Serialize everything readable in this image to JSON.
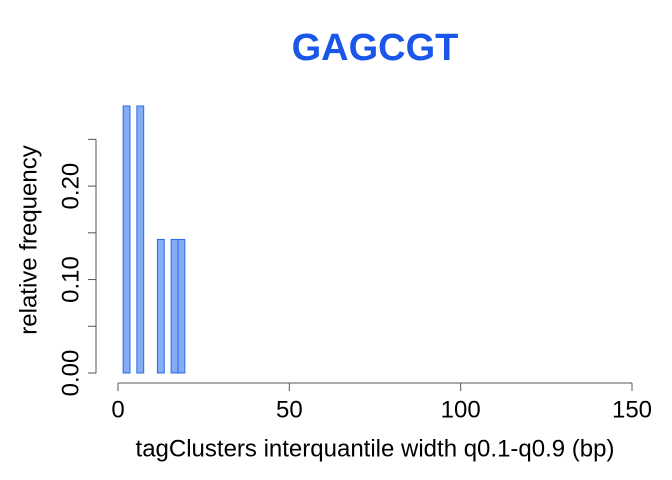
{
  "chart_data": {
    "type": "histogram",
    "title": "GAGCGT",
    "title_color": "#1a56e8",
    "x_label": "tagClusters interquantile width q0.1-q0.9 (bp)",
    "y_label": "relative frequency",
    "bins": [
      1.5,
      3.5,
      5.5,
      7.5,
      9.5,
      11.5,
      13.5,
      15.5,
      17.5,
      19.5
    ],
    "values": [
      0.2857,
      0,
      0.2857,
      0,
      0,
      0.1429,
      0,
      0.1429,
      0.1429
    ],
    "color": "#85acf5",
    "edge_color": "#2a6ae8",
    "xlim": [
      0,
      150
    ],
    "xticks": [
      0,
      50,
      100,
      150
    ],
    "ylim": [
      0,
      0.2857
    ],
    "yticks": [
      {
        "value": 0,
        "label": "0.00"
      },
      {
        "value": 0.1,
        "label": "0.10"
      },
      {
        "value": 0.2,
        "label": "0.20"
      }
    ],
    "yminor_ticks": [
      0.05,
      0.15,
      0.25
    ]
  }
}
